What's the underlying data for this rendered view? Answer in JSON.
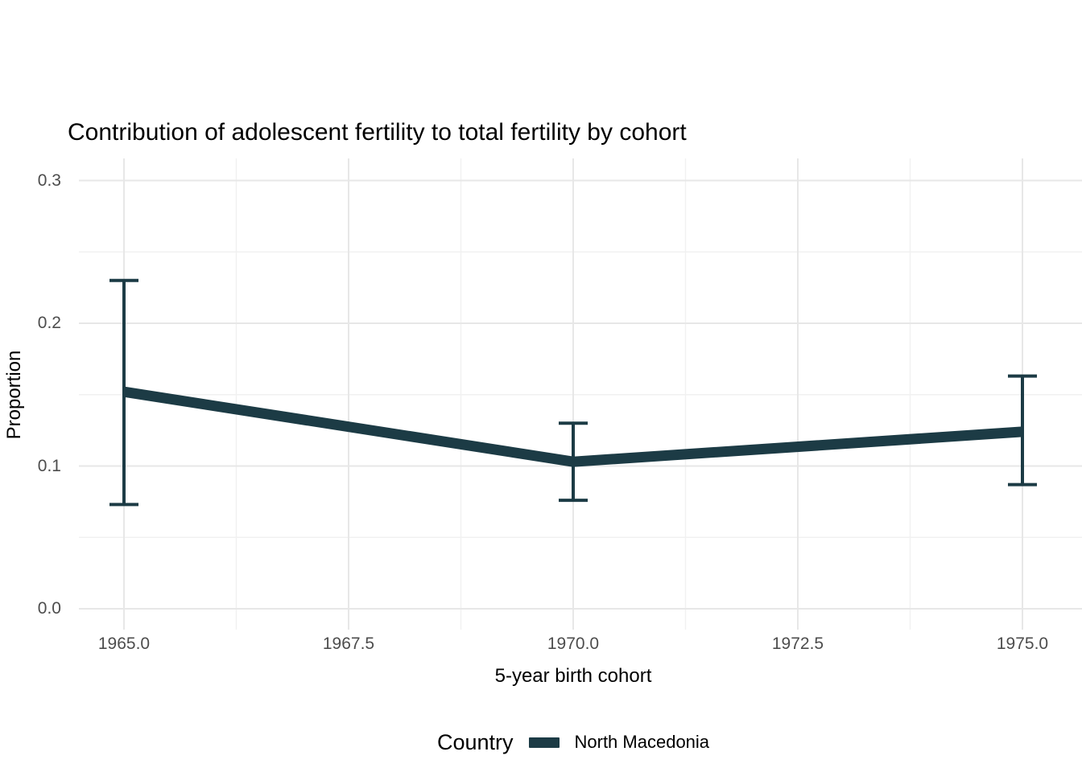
{
  "chart_data": {
    "type": "line",
    "title": "Contribution of adolescent fertility to total fertility by cohort",
    "xlabel": "5-year birth cohort",
    "ylabel": "Proportion",
    "x": [
      1965,
      1970,
      1975
    ],
    "series": [
      {
        "name": "North Macedonia",
        "color": "#1c3b45",
        "values": [
          0.152,
          0.103,
          0.124
        ],
        "ci_lower": [
          0.073,
          0.076,
          0.087
        ],
        "ci_upper": [
          0.23,
          0.13,
          0.163
        ]
      }
    ],
    "error_bars": true,
    "x_axis": {
      "tick_labels": [
        "1965.0",
        "1967.5",
        "1970.0",
        "1972.5",
        "1975.0"
      ],
      "tick_values": [
        1965,
        1967.5,
        1970,
        1972.5,
        1975
      ],
      "minor_tick_values": [
        1966.25,
        1968.75,
        1971.25,
        1973.75
      ],
      "range": [
        1965,
        1975
      ]
    },
    "y_axis": {
      "tick_labels": [
        "0.0",
        "0.1",
        "0.2",
        "0.3"
      ],
      "tick_values": [
        0,
        0.1,
        0.2,
        0.3
      ],
      "minor_tick_values": [
        0.05,
        0.15,
        0.25
      ],
      "range": [
        0,
        0.3
      ]
    },
    "grid": true,
    "legend_position": "bottom"
  },
  "legend": {
    "title": "Country",
    "items": [
      {
        "label": "North Macedonia",
        "color": "#1c3b45",
        "marker": "line-swatch"
      }
    ]
  },
  "colors": {
    "background": "#ffffff",
    "grid_major": "#e7e7e7",
    "grid_minor": "#f1f1f1",
    "tick_label": "#4d4d4d",
    "series": "#1c3b45"
  }
}
